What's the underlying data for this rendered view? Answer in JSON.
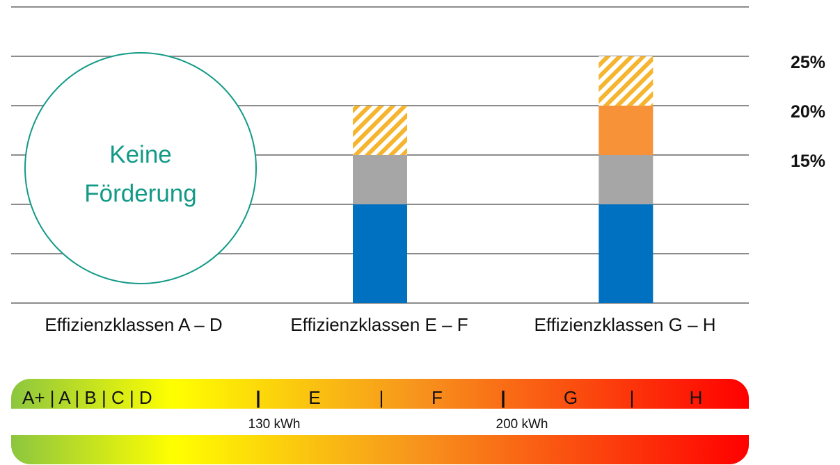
{
  "chart_data": {
    "type": "bar",
    "stacked": true,
    "categories": [
      "Effizienzklassen A – D",
      "Effizienzklassen E – F",
      "Effizienzklassen G – H"
    ],
    "series": [
      {
        "color": "#0070c0",
        "values": [
          0,
          10,
          10
        ]
      },
      {
        "color": "#a6a6a6",
        "values": [
          0,
          5,
          5
        ]
      },
      {
        "color": "#f79238",
        "values": [
          0,
          0,
          5
        ]
      },
      {
        "color": "#f5b52f",
        "pattern": "diagonal-stripes",
        "values": [
          0,
          5,
          5
        ]
      }
    ],
    "ylim": [
      0,
      30
    ],
    "grid": true,
    "right_labels": [
      {
        "value": 25,
        "text": "25%"
      },
      {
        "value": 20,
        "text": "20%"
      },
      {
        "value": 15,
        "text": "15%"
      }
    ],
    "annotation": {
      "line1": "Keine",
      "line2": "Förderung",
      "color": "#129a87"
    }
  },
  "scale": {
    "label_segments": [
      "A+ | A | B | C | D",
      "|",
      "E",
      "|",
      "F",
      "|",
      "G",
      "|",
      "H"
    ],
    "thresholds": [
      "130 kWh",
      "200 kWh"
    ],
    "gradient_colors": [
      "#8cc63f",
      "#ffff00",
      "#f7941d",
      "#ff0000"
    ]
  }
}
